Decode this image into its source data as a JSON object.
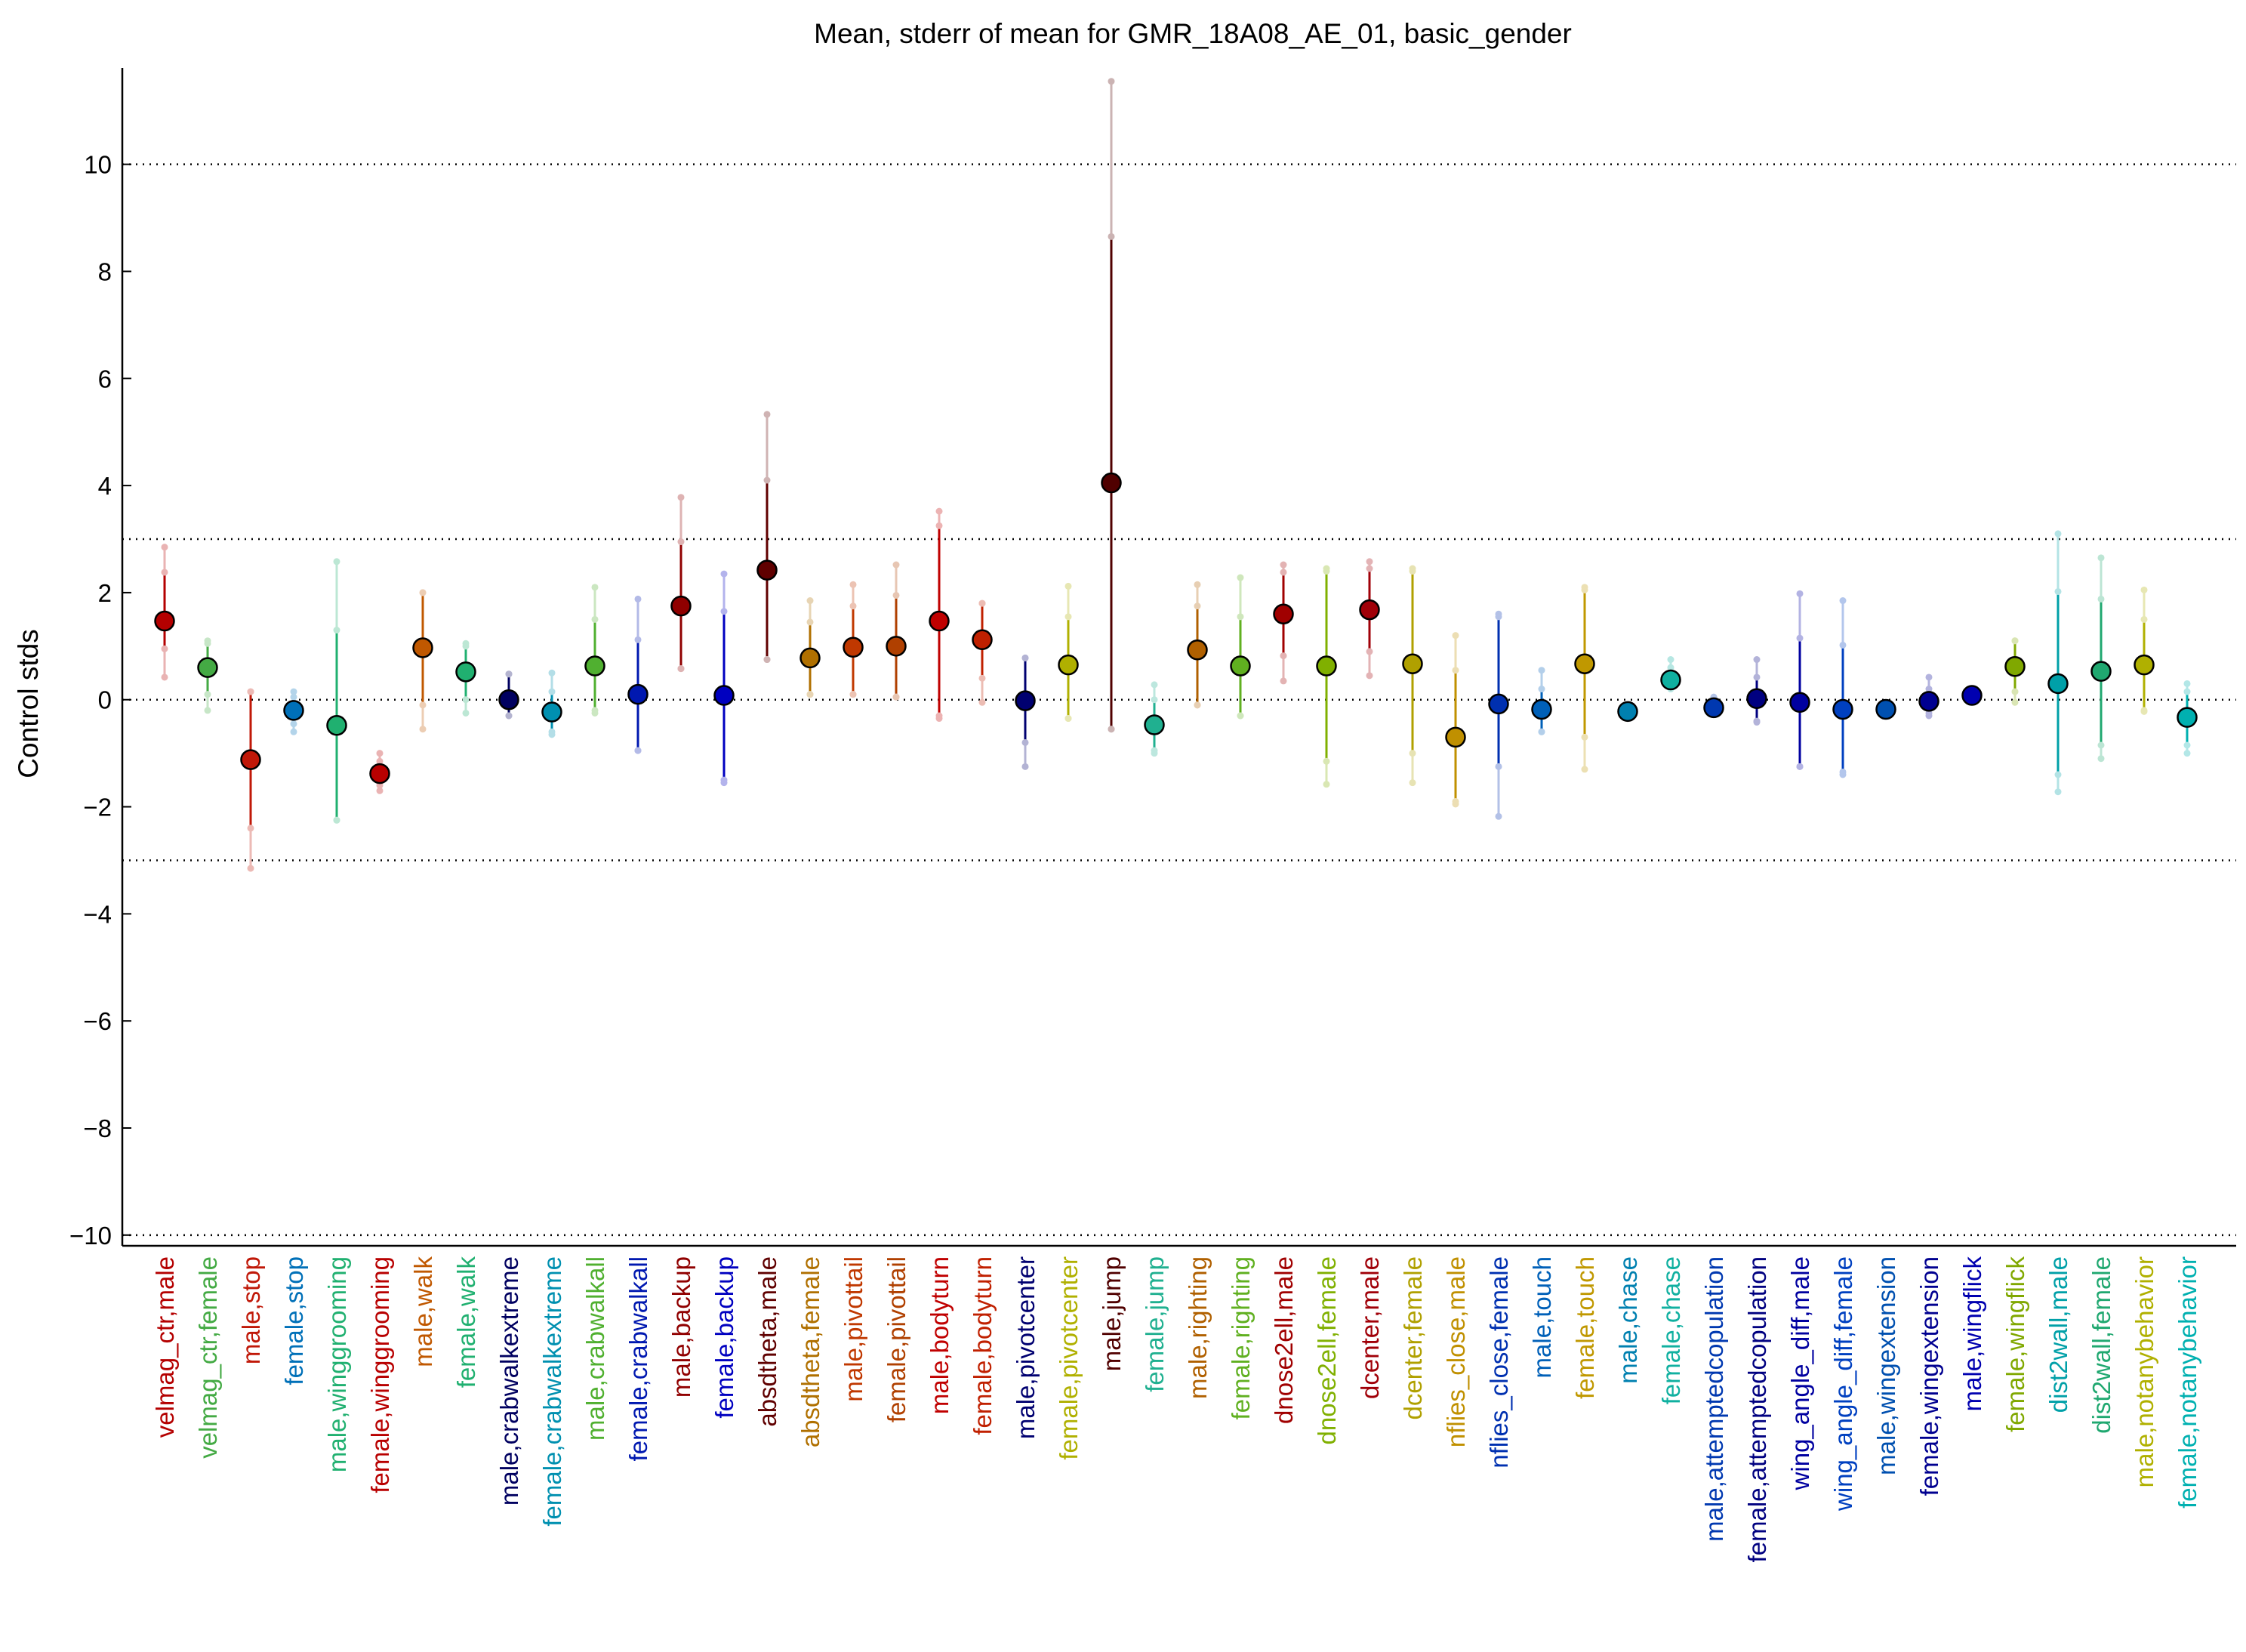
{
  "chart_data": {
    "type": "errorbar",
    "title": "Mean, stderr of mean for GMR_18A08_AE_01, basic_gender",
    "xlabel": "",
    "ylabel": "Control stds",
    "ylim": [
      -10.2,
      11.8
    ],
    "yticks": [
      {
        "value": 10,
        "label": "10"
      },
      {
        "value": 8,
        "label": "8"
      },
      {
        "value": 6,
        "label": "6"
      },
      {
        "value": 4,
        "label": "4"
      },
      {
        "value": 2,
        "label": "2"
      },
      {
        "value": 0,
        "label": "0"
      },
      {
        "value": -2,
        "label": "−2"
      },
      {
        "value": -4,
        "label": "−4"
      },
      {
        "value": -6,
        "label": "−6"
      },
      {
        "value": -8,
        "label": "−8"
      },
      {
        "value": -10,
        "label": "−10"
      }
    ],
    "reference_lines": [
      10,
      3,
      0,
      -3,
      -10
    ],
    "grid": false,
    "points": [
      {
        "label": "velmag_ctr,male",
        "color": "#b40000",
        "mean": 1.47,
        "err_lo": 0.95,
        "err_hi": 2.38,
        "ext_lo": 0.42,
        "ext_hi": 2.85
      },
      {
        "label": "velmag_ctr,female",
        "color": "#44aa44",
        "mean": 0.6,
        "err_lo": 0.1,
        "err_hi": 1.05,
        "ext_lo": -0.2,
        "ext_hi": 1.1
      },
      {
        "label": "male,stop",
        "color": "#c01808",
        "mean": -1.12,
        "err_lo": -2.4,
        "err_hi": 0.15,
        "ext_lo": -3.15,
        "ext_hi": 0.15
      },
      {
        "label": "female,stop",
        "color": "#0070b8",
        "mean": -0.2,
        "err_lo": -0.45,
        "err_hi": 0.05,
        "ext_lo": -0.6,
        "ext_hi": 0.15
      },
      {
        "label": "male,winggrooming",
        "color": "#20b070",
        "mean": -0.48,
        "err_lo": -2.25,
        "err_hi": 1.3,
        "ext_lo": -2.25,
        "ext_hi": 2.58
      },
      {
        "label": "female,winggrooming",
        "color": "#b80000",
        "mean": -1.38,
        "err_lo": -1.6,
        "err_hi": -1.15,
        "ext_lo": -1.7,
        "ext_hi": -1.0
      },
      {
        "label": "male,walk",
        "color": "#c05800",
        "mean": 0.97,
        "err_lo": -0.1,
        "err_hi": 2.0,
        "ext_lo": -0.55,
        "ext_hi": 2.0
      },
      {
        "label": "female,walk",
        "color": "#20b070",
        "mean": 0.52,
        "err_lo": 0.0,
        "err_hi": 1.0,
        "ext_lo": -0.25,
        "ext_hi": 1.05
      },
      {
        "label": "male,crabwalkextreme",
        "color": "#000060",
        "mean": 0.0,
        "err_lo": -0.3,
        "err_hi": 0.48,
        "ext_lo": -0.3,
        "ext_hi": 0.48
      },
      {
        "label": "female,crabwalkextreme",
        "color": "#0090b0",
        "mean": -0.23,
        "err_lo": -0.6,
        "err_hi": 0.15,
        "ext_lo": -0.65,
        "ext_hi": 0.5
      },
      {
        "label": "male,crabwalkall",
        "color": "#50b030",
        "mean": 0.63,
        "err_lo": -0.2,
        "err_hi": 1.5,
        "ext_lo": -0.25,
        "ext_hi": 2.1
      },
      {
        "label": "female,crabwalkall",
        "color": "#0018b0",
        "mean": 0.1,
        "err_lo": -0.95,
        "err_hi": 1.12,
        "ext_lo": -0.95,
        "ext_hi": 1.88
      },
      {
        "label": "male,backup",
        "color": "#900000",
        "mean": 1.75,
        "err_lo": 0.58,
        "err_hi": 2.95,
        "ext_lo": 0.58,
        "ext_hi": 3.78
      },
      {
        "label": "female,backup",
        "color": "#0000c0",
        "mean": 0.08,
        "err_lo": -1.5,
        "err_hi": 1.65,
        "ext_lo": -1.55,
        "ext_hi": 2.35
      },
      {
        "label": "absdtheta,male",
        "color": "#600000",
        "mean": 2.42,
        "err_lo": 0.75,
        "err_hi": 4.1,
        "ext_lo": 0.75,
        "ext_hi": 5.33
      },
      {
        "label": "absdtheta,female",
        "color": "#b07000",
        "mean": 0.78,
        "err_lo": 0.1,
        "err_hi": 1.45,
        "ext_lo": 0.1,
        "ext_hi": 1.85
      },
      {
        "label": "male,pivottail",
        "color": "#c03800",
        "mean": 0.98,
        "err_lo": 0.1,
        "err_hi": 1.75,
        "ext_lo": 0.1,
        "ext_hi": 2.15
      },
      {
        "label": "female,pivottail",
        "color": "#b04000",
        "mean": 1.0,
        "err_lo": 0.05,
        "err_hi": 1.95,
        "ext_lo": 0.05,
        "ext_hi": 2.52
      },
      {
        "label": "male,bodyturn",
        "color": "#c00000",
        "mean": 1.47,
        "err_lo": -0.3,
        "err_hi": 3.25,
        "ext_lo": -0.35,
        "ext_hi": 3.52
      },
      {
        "label": "female,bodyturn",
        "color": "#c02000",
        "mean": 1.12,
        "err_lo": 0.4,
        "err_hi": 1.8,
        "ext_lo": -0.05,
        "ext_hi": 1.8
      },
      {
        "label": "male,pivotcenter",
        "color": "#000070",
        "mean": -0.02,
        "err_lo": -0.8,
        "err_hi": 0.78,
        "ext_lo": -1.25,
        "ext_hi": 0.78
      },
      {
        "label": "female,pivotcenter",
        "color": "#b0b000",
        "mean": 0.65,
        "err_lo": -0.35,
        "err_hi": 1.55,
        "ext_lo": -0.35,
        "ext_hi": 2.12
      },
      {
        "label": "male,jump",
        "color": "#500000",
        "mean": 4.05,
        "err_lo": -0.55,
        "err_hi": 8.65,
        "ext_lo": -0.55,
        "ext_hi": 11.55
      },
      {
        "label": "female,jump",
        "color": "#20b090",
        "mean": -0.47,
        "err_lo": -0.95,
        "err_hi": 0.0,
        "ext_lo": -1.0,
        "ext_hi": 0.28
      },
      {
        "label": "male,righting",
        "color": "#b06000",
        "mean": 0.93,
        "err_lo": -0.1,
        "err_hi": 1.75,
        "ext_lo": -0.1,
        "ext_hi": 2.15
      },
      {
        "label": "female,righting",
        "color": "#60b020",
        "mean": 0.63,
        "err_lo": -0.3,
        "err_hi": 1.55,
        "ext_lo": -0.3,
        "ext_hi": 2.28
      },
      {
        "label": "dnose2ell,male",
        "color": "#a00000",
        "mean": 1.6,
        "err_lo": 0.82,
        "err_hi": 2.38,
        "ext_lo": 0.35,
        "ext_hi": 2.52
      },
      {
        "label": "dnose2ell,female",
        "color": "#80b000",
        "mean": 0.63,
        "err_lo": -1.15,
        "err_hi": 2.4,
        "ext_lo": -1.58,
        "ext_hi": 2.45
      },
      {
        "label": "dcenter,male",
        "color": "#a00008",
        "mean": 1.68,
        "err_lo": 0.9,
        "err_hi": 2.45,
        "ext_lo": 0.45,
        "ext_hi": 2.58
      },
      {
        "label": "dcenter,female",
        "color": "#b0a000",
        "mean": 0.67,
        "err_lo": -1.0,
        "err_hi": 2.4,
        "ext_lo": -1.55,
        "ext_hi": 2.45
      },
      {
        "label": "nflies_close,male",
        "color": "#c09000",
        "mean": -0.7,
        "err_lo": -1.9,
        "err_hi": 0.55,
        "ext_lo": -1.95,
        "ext_hi": 1.2
      },
      {
        "label": "nflies_close,female",
        "color": "#0030b0",
        "mean": -0.08,
        "err_lo": -1.25,
        "err_hi": 1.55,
        "ext_lo": -2.18,
        "ext_hi": 1.6
      },
      {
        "label": "male,touch",
        "color": "#0060b8",
        "mean": -0.18,
        "err_lo": -0.6,
        "err_hi": 0.2,
        "ext_lo": -0.6,
        "ext_hi": 0.55
      },
      {
        "label": "female,touch",
        "color": "#c09800",
        "mean": 0.67,
        "err_lo": -0.7,
        "err_hi": 2.05,
        "ext_lo": -1.3,
        "ext_hi": 2.1
      },
      {
        "label": "male,chase",
        "color": "#0080b0",
        "mean": -0.22,
        "err_lo": -0.25,
        "err_hi": -0.15,
        "ext_lo": -0.25,
        "ext_hi": -0.15
      },
      {
        "label": "female,chase",
        "color": "#10b0a0",
        "mean": 0.37,
        "err_lo": 0.25,
        "err_hi": 0.6,
        "ext_lo": 0.2,
        "ext_hi": 0.75
      },
      {
        "label": "male,attemptedcopulation",
        "color": "#0038b0",
        "mean": -0.15,
        "err_lo": -0.2,
        "err_hi": -0.05,
        "ext_lo": -0.2,
        "ext_hi": 0.05
      },
      {
        "label": "female,attemptedcopulation",
        "color": "#000080",
        "mean": 0.02,
        "err_lo": -0.4,
        "err_hi": 0.42,
        "ext_lo": -0.42,
        "ext_hi": 0.75
      },
      {
        "label": "wing_angle_diff,male",
        "color": "#0000a0",
        "mean": -0.05,
        "err_lo": -1.25,
        "err_hi": 1.15,
        "ext_lo": -1.25,
        "ext_hi": 1.98
      },
      {
        "label": "wing_angle_diff,female",
        "color": "#0040c0",
        "mean": -0.18,
        "err_lo": -1.35,
        "err_hi": 1.02,
        "ext_lo": -1.4,
        "ext_hi": 1.85
      },
      {
        "label": "male,wingextension",
        "color": "#0050b0",
        "mean": -0.18,
        "err_lo": -0.22,
        "err_hi": -0.12,
        "ext_lo": -0.22,
        "ext_hi": -0.12
      },
      {
        "label": "female,wingextension",
        "color": "#000090",
        "mean": -0.03,
        "err_lo": -0.25,
        "err_hi": 0.2,
        "ext_lo": -0.3,
        "ext_hi": 0.42
      },
      {
        "label": "male,wingflick",
        "color": "#0000b0",
        "mean": 0.08,
        "err_lo": 0.05,
        "err_hi": 0.12,
        "ext_lo": 0.05,
        "ext_hi": 0.12
      },
      {
        "label": "female,wingflick",
        "color": "#80a800",
        "mean": 0.62,
        "err_lo": 0.15,
        "err_hi": 1.1,
        "ext_lo": -0.05,
        "ext_hi": 1.1
      },
      {
        "label": "dist2wall,male",
        "color": "#00a0a8",
        "mean": 0.3,
        "err_lo": -1.4,
        "err_hi": 2.02,
        "ext_lo": -1.72,
        "ext_hi": 3.1
      },
      {
        "label": "dist2wall,female",
        "color": "#20a870",
        "mean": 0.53,
        "err_lo": -0.85,
        "err_hi": 1.88,
        "ext_lo": -1.1,
        "ext_hi": 2.65
      },
      {
        "label": "male,notanybehavior",
        "color": "#b0b000",
        "mean": 0.65,
        "err_lo": -0.2,
        "err_hi": 1.5,
        "ext_lo": -0.22,
        "ext_hi": 2.05
      },
      {
        "label": "female,notanybehavior",
        "color": "#00b0b0",
        "mean": -0.33,
        "err_lo": -0.85,
        "err_hi": 0.15,
        "ext_lo": -1.0,
        "ext_hi": 0.3
      }
    ]
  }
}
